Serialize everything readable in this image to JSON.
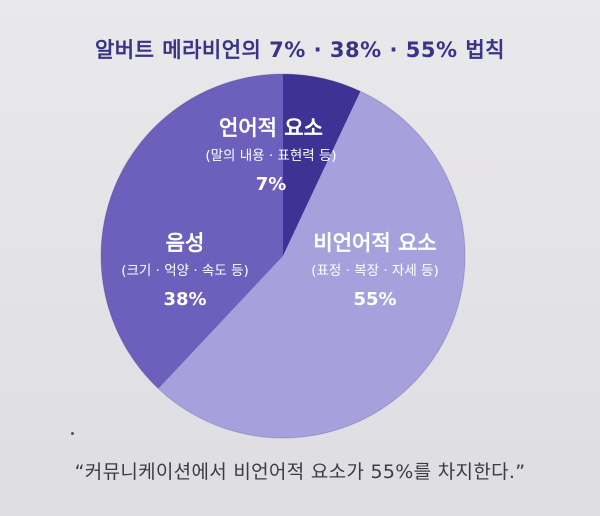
{
  "chart_data": {
    "type": "pie",
    "title": "알버트 메라비언의 7% · 38% · 55% 법칙",
    "slices": [
      {
        "name": "언어적 요소",
        "detail": "(말의 내용 · 표현력 등)",
        "value": 7,
        "value_label": "7%",
        "color": "#3e3394"
      },
      {
        "name": "비언어적 요소",
        "detail": "(표정 · 복장 · 자세 등)",
        "value": 55,
        "value_label": "55%",
        "color": "#a6a0dc"
      },
      {
        "name": "음성",
        "detail": "(크기 · 억양 · 속도 등)",
        "value": 38,
        "value_label": "38%",
        "color": "#6c60bc"
      }
    ]
  },
  "quote": "“커뮤니케이션에서 비언어적 요소가 55%를 차지한다.”"
}
